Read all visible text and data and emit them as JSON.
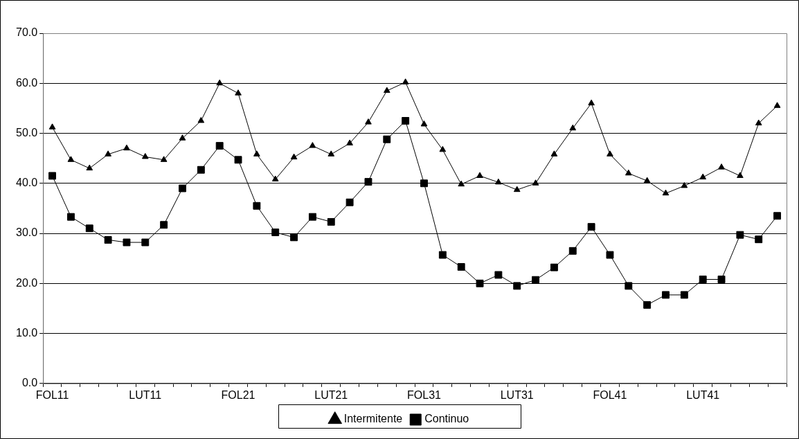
{
  "chart_data": {
    "type": "line",
    "categories": [
      "FOL11",
      null,
      null,
      null,
      null,
      "LUT11",
      null,
      null,
      null,
      null,
      "FOL21",
      null,
      null,
      null,
      null,
      "LUT21",
      null,
      null,
      null,
      null,
      "FOL31",
      null,
      null,
      null,
      null,
      "LUT31",
      null,
      null,
      null,
      null,
      "FOL41",
      null,
      null,
      null,
      null,
      "LUT41",
      null,
      null,
      null,
      null
    ],
    "series": [
      {
        "name": "Intermitente",
        "color": "#000000",
        "marker": "triangle",
        "values": [
          51.2,
          44.7,
          43.0,
          45.8,
          47.0,
          45.3,
          44.7,
          49.0,
          52.5,
          60.0,
          58.0,
          45.8,
          40.8,
          45.2,
          47.5,
          45.8,
          48.0,
          52.2,
          58.5,
          60.2,
          51.8,
          46.7,
          39.8,
          41.5,
          40.2,
          38.7,
          40.0,
          45.8,
          51.0,
          56.0,
          45.8,
          42.0,
          40.5,
          38.0,
          39.5,
          41.2,
          43.2,
          41.5,
          52.0,
          55.5
        ]
      },
      {
        "name": "Continuo",
        "color": "#000000",
        "marker": "square",
        "values": [
          41.5,
          33.3,
          31.0,
          28.7,
          28.2,
          28.2,
          31.7,
          39.0,
          42.7,
          47.5,
          44.7,
          35.5,
          30.2,
          29.2,
          33.3,
          32.3,
          36.2,
          40.3,
          48.8,
          52.5,
          40.0,
          25.7,
          23.3,
          20.0,
          21.7,
          19.5,
          20.7,
          23.2,
          26.5,
          31.3,
          25.7,
          19.5,
          15.7,
          17.7,
          17.7,
          20.8,
          20.8,
          29.7,
          28.8,
          33.5
        ]
      }
    ],
    "ylim": [
      0,
      70
    ],
    "yticks": [
      {
        "value": 0,
        "label": "0.0"
      },
      {
        "value": 10,
        "label": "10.0"
      },
      {
        "value": 20,
        "label": "20.0"
      },
      {
        "value": 30,
        "label": "30.0"
      },
      {
        "value": 40,
        "label": "40.0"
      },
      {
        "value": 50,
        "label": "50.0"
      },
      {
        "value": 60,
        "label": "60.0"
      },
      {
        "value": 70,
        "label": "70.0"
      }
    ],
    "grid": "y",
    "legend": "bottom",
    "line_style": "solid"
  }
}
